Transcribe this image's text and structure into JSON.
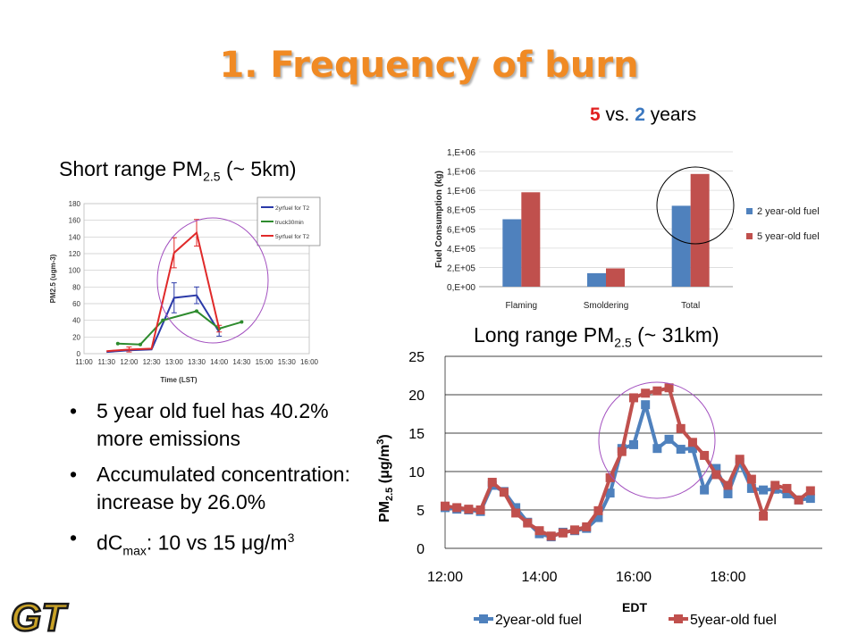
{
  "slide": {
    "title": "1. Frequency of burn",
    "compare": {
      "five": "5",
      "vs": " vs. ",
      "two": "2",
      "years": " years"
    },
    "short_caption": {
      "pre": "Short range PM",
      "sub": "2.5",
      "post": " (~ 5km)"
    },
    "long_caption": {
      "pre": "Long  range PM",
      "sub": "2.5",
      "post": " (~ 31km)"
    },
    "bullets": [
      {
        "text": "5 year old fuel has 40.2% more emissions"
      },
      {
        "text": "Accumulated concentration: increase by 26.0%"
      },
      {
        "pre": "dC",
        "sub": "max",
        "mid": ": 10 vs 15 μg/m",
        "sup": "3"
      }
    ],
    "logo_text": "GT"
  },
  "chart_data": [
    {
      "id": "short",
      "type": "line",
      "title": "",
      "xlabel": "Time (LST)",
      "ylabel": "PM2.5 (ugm-3)",
      "ylim": [
        0,
        180
      ],
      "yticks": [
        0,
        20,
        40,
        60,
        80,
        100,
        120,
        140,
        160,
        180
      ],
      "xticks": [
        "11:00",
        "11:30",
        "12:00",
        "12:30",
        "13:00",
        "13:30",
        "14:00",
        "14:30",
        "15:00",
        "15:30",
        "16:00"
      ],
      "legend": "top-right",
      "series": [
        {
          "name": "2yrfuel for T2",
          "color": "#2b3aa8",
          "x": [
            11.5,
            12.0,
            12.5,
            13.0,
            13.5,
            14.0
          ],
          "y": [
            2,
            4,
            5,
            67,
            70,
            26
          ],
          "err": [
            null,
            null,
            null,
            18,
            10,
            5
          ]
        },
        {
          "name": "truck30min",
          "color": "#2e8b2e",
          "x": [
            11.75,
            12.25,
            12.75,
            13.5,
            14.0,
            14.5
          ],
          "y": [
            12,
            11,
            40,
            51,
            30,
            38
          ]
        },
        {
          "name": "5yrfuel for T2",
          "color": "#e02a2a",
          "x": [
            11.5,
            12.0,
            12.5,
            13.0,
            13.5,
            14.0
          ],
          "y": [
            3,
            5,
            6,
            121,
            145,
            30
          ],
          "err": [
            null,
            3,
            null,
            18,
            16,
            4
          ]
        }
      ]
    },
    {
      "id": "bar",
      "type": "bar",
      "title": "",
      "xlabel": "",
      "ylabel": "Fuel Consumption (kg)",
      "ylim": [
        0,
        1400000
      ],
      "ytick_labels": [
        "0,E+00",
        "2,E+05",
        "4,E+05",
        "6,E+05",
        "8,E+05",
        "1,E+06",
        "1,E+06",
        "1,E+06"
      ],
      "categories": [
        "Flaming",
        "Smoldering",
        "Total"
      ],
      "legend": "right",
      "series": [
        {
          "name": "2 year-old fuel",
          "color": "#4f81bd",
          "values": [
            700000,
            140000,
            840000
          ]
        },
        {
          "name": "5 year-old fuel",
          "color": "#c0504d",
          "values": [
            980000,
            190000,
            1170000
          ]
        }
      ]
    },
    {
      "id": "long",
      "type": "line",
      "title": "",
      "xlabel": "EDT",
      "ylabel": {
        "pre": "PM",
        "sub": "2.5",
        "mid": " (μg/m",
        "sup": "3",
        "post": ")"
      },
      "ylim": [
        0,
        25
      ],
      "yticks": [
        0,
        5,
        10,
        15,
        20,
        25
      ],
      "xlim": [
        12.0,
        20.0
      ],
      "xticks": [
        "12:00",
        "14:00",
        "16:00",
        "18:00"
      ],
      "xtick_values": [
        12,
        14,
        16,
        18
      ],
      "legend": "bottom",
      "series": [
        {
          "name": "2year-old fuel",
          "color": "#4f81bd",
          "x": [
            12.0,
            12.25,
            12.5,
            12.75,
            13.0,
            13.25,
            13.5,
            13.75,
            14.0,
            14.25,
            14.5,
            14.75,
            15.0,
            15.25,
            15.5,
            15.75,
            16.0,
            16.25,
            16.5,
            16.75,
            17.0,
            17.25,
            17.5,
            17.75,
            18.0,
            18.25,
            18.5,
            18.75,
            19.0,
            19.25,
            19.5,
            19.75
          ],
          "y": [
            5.3,
            5.1,
            5.0,
            4.8,
            8.2,
            7.4,
            5.3,
            3.4,
            1.9,
            1.5,
            2.1,
            2.3,
            2.6,
            4.0,
            7.2,
            13.0,
            13.5,
            18.7,
            13.0,
            14.2,
            12.9,
            13.0,
            7.6,
            10.4,
            7.1,
            11.2,
            7.8,
            7.6,
            7.7,
            7.1,
            6.3,
            6.5
          ]
        },
        {
          "name": "5year-old fuel",
          "color": "#c0504d",
          "x": [
            12.0,
            12.25,
            12.5,
            12.75,
            13.0,
            13.25,
            13.5,
            13.75,
            14.0,
            14.25,
            14.5,
            14.75,
            15.0,
            15.25,
            15.5,
            15.75,
            16.0,
            16.25,
            16.5,
            16.75,
            17.0,
            17.25,
            17.5,
            17.75,
            18.0,
            18.25,
            18.5,
            18.75,
            19.0,
            19.25,
            19.5,
            19.75
          ],
          "y": [
            5.5,
            5.3,
            5.1,
            5.0,
            8.6,
            7.3,
            4.6,
            3.3,
            2.3,
            1.6,
            2.0,
            2.4,
            2.8,
            4.9,
            9.2,
            12.6,
            19.6,
            20.2,
            20.5,
            20.9,
            15.6,
            13.8,
            12.1,
            9.6,
            8.2,
            11.6,
            9.0,
            4.2,
            8.2,
            7.8,
            6.3,
            7.5
          ]
        }
      ]
    }
  ]
}
